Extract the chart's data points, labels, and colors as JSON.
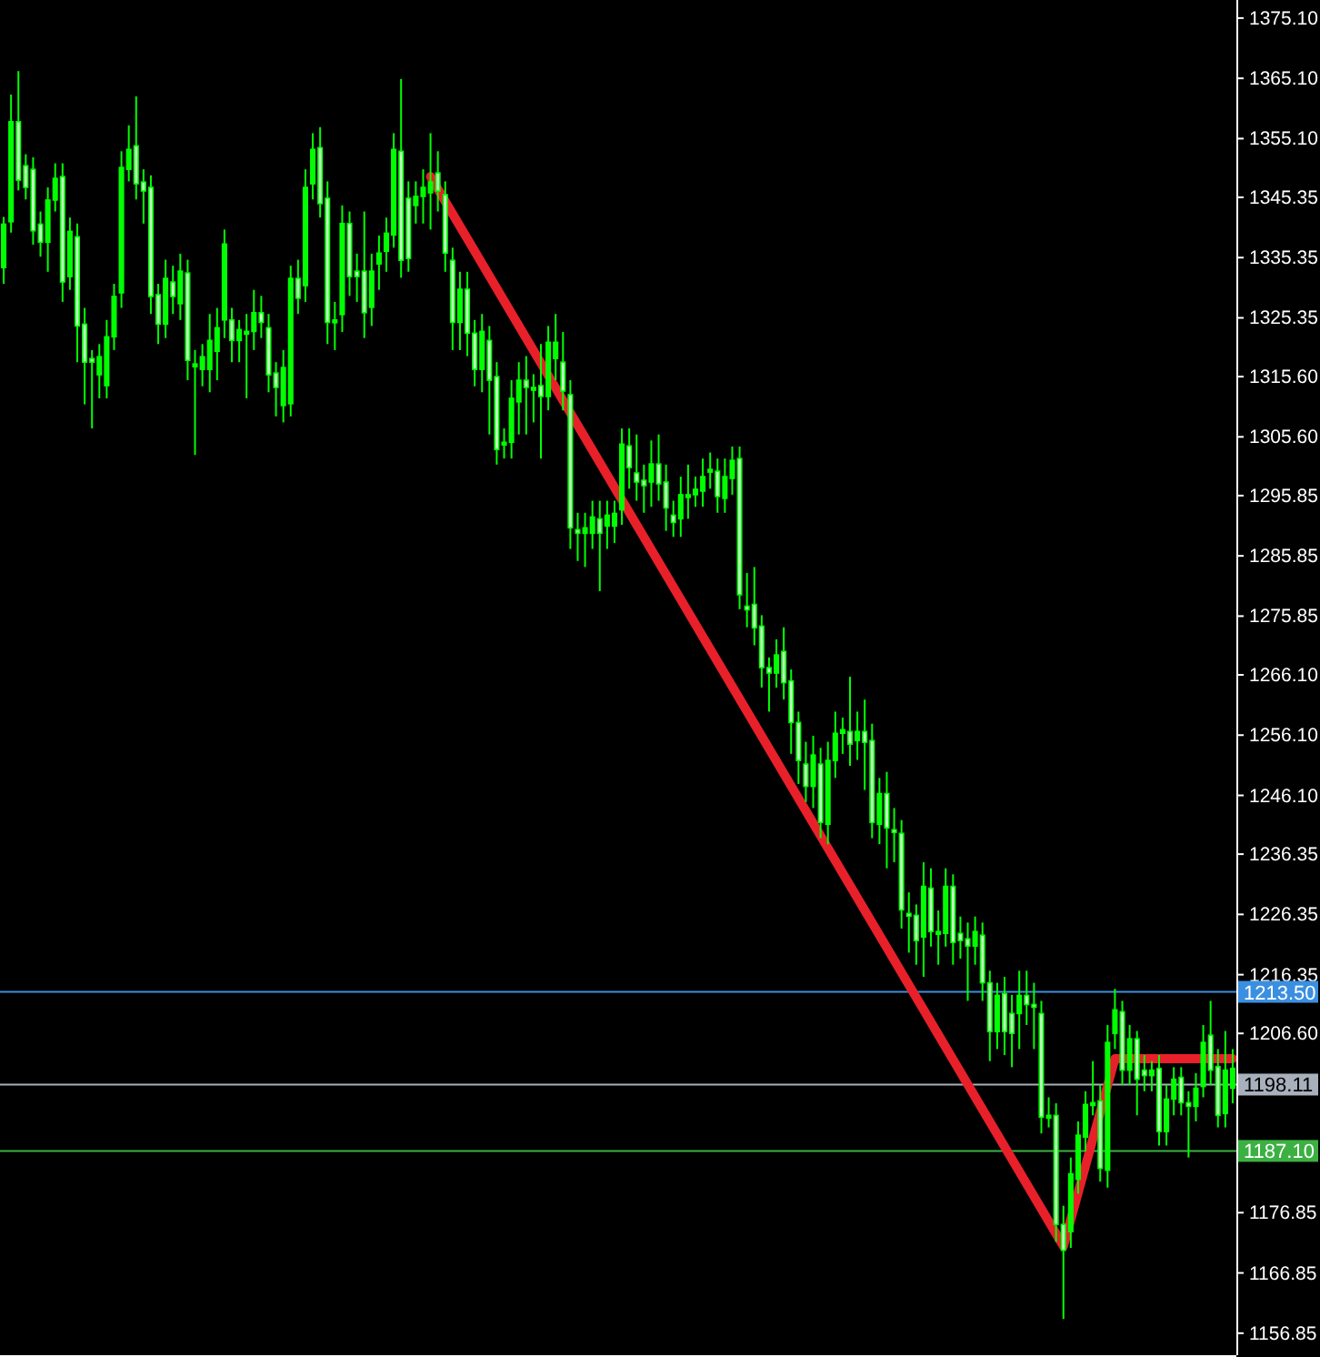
{
  "chart_data": {
    "type": "candlestick",
    "color": "#00ff00",
    "tick_labels": "y",
    "grid": false,
    "ylim": [
      1153.2,
      1378.1
    ],
    "yticks": [
      {
        "value": 1375.1,
        "label": "1375.10"
      },
      {
        "value": 1365.1,
        "label": "1365.10"
      },
      {
        "value": 1355.1,
        "label": "1355.10"
      },
      {
        "value": 1345.35,
        "label": "1345.35"
      },
      {
        "value": 1335.35,
        "label": "1335.35"
      },
      {
        "value": 1325.35,
        "label": "1325.35"
      },
      {
        "value": 1315.6,
        "label": "1315.60"
      },
      {
        "value": 1305.6,
        "label": "1305.60"
      },
      {
        "value": 1295.85,
        "label": "1295.85"
      },
      {
        "value": 1285.85,
        "label": "1285.85"
      },
      {
        "value": 1275.85,
        "label": "1275.85"
      },
      {
        "value": 1266.1,
        "label": "1266.10"
      },
      {
        "value": 1256.1,
        "label": "1256.10"
      },
      {
        "value": 1246.1,
        "label": "1246.10"
      },
      {
        "value": 1236.35,
        "label": "1236.35"
      },
      {
        "value": 1226.35,
        "label": "1226.35"
      },
      {
        "value": 1216.35,
        "label": "1216.35"
      },
      {
        "value": 1206.6,
        "label": "1206.60"
      },
      {
        "value": 1176.85,
        "label": "1176.85"
      },
      {
        "value": 1166.85,
        "label": "1166.85"
      },
      {
        "value": 1156.85,
        "label": "1156.85"
      }
    ],
    "categories": [
      null,
      null,
      null,
      null,
      null,
      null,
      null,
      null,
      null,
      null,
      null,
      null,
      null,
      null,
      null,
      null,
      null,
      null,
      null,
      null,
      null,
      null,
      null,
      null,
      null,
      null,
      null,
      null,
      null,
      null,
      null,
      null,
      null,
      null,
      null,
      null,
      null,
      null,
      null,
      null,
      null,
      null,
      null,
      null,
      null,
      null,
      null,
      null,
      null,
      null,
      null,
      null,
      null,
      null,
      null,
      null,
      null,
      null,
      null,
      null,
      null,
      null,
      null,
      null,
      null,
      null,
      null,
      null,
      null,
      null,
      null,
      null,
      null,
      null,
      null,
      null,
      null,
      null,
      null,
      null,
      null,
      null,
      null,
      null,
      null,
      null,
      null,
      null,
      null,
      null,
      null,
      null,
      null,
      null,
      null,
      null,
      null,
      null,
      null,
      null,
      null,
      null,
      null,
      null,
      null,
      null,
      null,
      null,
      null,
      null,
      null,
      null,
      null,
      null,
      null,
      null,
      null,
      null,
      null,
      null,
      null,
      null,
      null,
      null,
      null,
      null,
      null,
      null,
      null,
      null,
      null,
      null,
      null,
      null,
      null,
      null,
      null,
      null,
      null,
      null,
      null,
      null,
      null,
      null,
      null,
      null,
      null,
      null,
      null,
      null,
      null,
      null,
      null,
      null,
      null,
      null,
      null,
      null,
      null,
      null,
      null,
      null,
      null,
      null,
      null,
      null,
      null,
      null
    ],
    "ohlc": [
      [
        1333.7,
        1342.1,
        1331.0,
        1340.9
      ],
      [
        1341.3,
        1362.4,
        1339.5,
        1357.9
      ],
      [
        1357.9,
        1366.3,
        1346.5,
        1348.2
      ],
      [
        1350.6,
        1352.5,
        1345.0,
        1347.0
      ],
      [
        1350.0,
        1352.0,
        1337.5,
        1339.8
      ],
      [
        1340.9,
        1343.0,
        1335.5,
        1337.9
      ],
      [
        1337.9,
        1347.0,
        1333.0,
        1344.9
      ],
      [
        1344.9,
        1351.0,
        1343.0,
        1348.5
      ],
      [
        1348.8,
        1351.0,
        1328.0,
        1331.3
      ],
      [
        1332.2,
        1342.0,
        1330.0,
        1339.7
      ],
      [
        1338.8,
        1341.0,
        1318.0,
        1324.0
      ],
      [
        1324.3,
        1327.0,
        1311.0,
        1318.0
      ],
      [
        1318.6,
        1320.0,
        1307.0,
        1318.0
      ],
      [
        1315.9,
        1321.0,
        1312.0,
        1318.9
      ],
      [
        1314.1,
        1325.0,
        1312.0,
        1322.2
      ],
      [
        1322.2,
        1331.0,
        1320.0,
        1328.9
      ],
      [
        1329.5,
        1353.0,
        1327.0,
        1350.3
      ],
      [
        1350.0,
        1357.3,
        1348.0,
        1353.3
      ],
      [
        1353.9,
        1362.1,
        1345.0,
        1347.6
      ],
      [
        1347.9,
        1350.0,
        1341.0,
        1346.4
      ],
      [
        1347.0,
        1349.0,
        1326.0,
        1328.9
      ],
      [
        1329.2,
        1331.0,
        1321.0,
        1324.3
      ],
      [
        1324.3,
        1335.0,
        1322.0,
        1331.9
      ],
      [
        1331.3,
        1334.0,
        1326.0,
        1328.9
      ],
      [
        1327.7,
        1336.0,
        1325.0,
        1333.1
      ],
      [
        1332.8,
        1335.0,
        1315.0,
        1318.3
      ],
      [
        1317.7,
        1320.0,
        1302.6,
        1317.7
      ],
      [
        1316.8,
        1321.0,
        1314.0,
        1318.9
      ],
      [
        1316.8,
        1326.0,
        1313.0,
        1321.6
      ],
      [
        1319.8,
        1327.0,
        1315.0,
        1323.7
      ],
      [
        1325.0,
        1340.0,
        1322.0,
        1337.6
      ],
      [
        1325.0,
        1327.0,
        1318.0,
        1321.6
      ],
      [
        1321.6,
        1325.0,
        1318.0,
        1323.4
      ],
      [
        1323.1,
        1326.0,
        1312.0,
        1323.1
      ],
      [
        1323.1,
        1330.0,
        1320.0,
        1326.2
      ],
      [
        1326.2,
        1329.0,
        1322.0,
        1324.6
      ],
      [
        1323.7,
        1326.0,
        1313.0,
        1315.9
      ],
      [
        1316.2,
        1318.0,
        1309.0,
        1313.8
      ],
      [
        1310.8,
        1320.0,
        1308.0,
        1317.1
      ],
      [
        1311.1,
        1334.0,
        1309.0,
        1331.9
      ],
      [
        1331.9,
        1335.0,
        1326.0,
        1328.6
      ],
      [
        1330.7,
        1350.0,
        1328.0,
        1347.0
      ],
      [
        1347.6,
        1356.0,
        1345.0,
        1353.3
      ],
      [
        1353.6,
        1357.0,
        1342.0,
        1344.3
      ],
      [
        1345.2,
        1348.0,
        1321.0,
        1324.6
      ],
      [
        1325.0,
        1328.0,
        1320.0,
        1325.0
      ],
      [
        1325.9,
        1344.0,
        1323.0,
        1341.0
      ],
      [
        1341.0,
        1343.0,
        1329.0,
        1332.2
      ],
      [
        1333.1,
        1336.0,
        1328.0,
        1332.2
      ],
      [
        1333.1,
        1343.0,
        1322.0,
        1326.2
      ],
      [
        1327.1,
        1336.0,
        1324.0,
        1333.1
      ],
      [
        1334.3,
        1339.0,
        1330.0,
        1336.1
      ],
      [
        1336.4,
        1342.0,
        1333.0,
        1339.4
      ],
      [
        1339.1,
        1356.0,
        1337.0,
        1353.3
      ],
      [
        1353.0,
        1365.0,
        1332.0,
        1334.9
      ],
      [
        1345.2,
        1348.0,
        1333.0,
        1335.2
      ],
      [
        1344.0,
        1348.0,
        1341.0,
        1345.5
      ],
      [
        1345.5,
        1350.0,
        1341.0,
        1347.0
      ],
      [
        1346.1,
        1356.0,
        1340.0,
        1347.9
      ],
      [
        1349.4,
        1353.0,
        1343.0,
        1346.4
      ],
      [
        1345.8,
        1348.0,
        1333.0,
        1336.1
      ],
      [
        1334.9,
        1337.0,
        1320.0,
        1324.6
      ],
      [
        1324.6,
        1333.0,
        1320.0,
        1330.1
      ],
      [
        1330.1,
        1333.0,
        1319.0,
        1322.8
      ],
      [
        1322.8,
        1325.0,
        1314.0,
        1316.8
      ],
      [
        1316.8,
        1326.0,
        1313.0,
        1323.1
      ],
      [
        1321.6,
        1324.0,
        1306.0,
        1315.0
      ],
      [
        1315.6,
        1318.0,
        1301.0,
        1303.5
      ],
      [
        1304.7,
        1307.0,
        1302.0,
        1304.7
      ],
      [
        1304.7,
        1315.0,
        1302.0,
        1312.0
      ],
      [
        1311.4,
        1318.0,
        1306.0,
        1315.0
      ],
      [
        1315.0,
        1319.0,
        1306.0,
        1313.8
      ],
      [
        1313.8,
        1316.0,
        1308.0,
        1313.8
      ],
      [
        1314.1,
        1321.0,
        1302.0,
        1312.3
      ],
      [
        1312.3,
        1324.0,
        1310.0,
        1321.3
      ],
      [
        1318.6,
        1326.0,
        1315.0,
        1321.3
      ],
      [
        1318.0,
        1323.0,
        1310.0,
        1313.2
      ],
      [
        1312.6,
        1315.0,
        1287.0,
        1290.5
      ],
      [
        1290.2,
        1293.0,
        1285.0,
        1289.6
      ],
      [
        1289.6,
        1293.0,
        1284.0,
        1290.5
      ],
      [
        1289.6,
        1295.0,
        1287.0,
        1292.3
      ],
      [
        1292.0,
        1295.0,
        1280.0,
        1289.6
      ],
      [
        1290.8,
        1295.0,
        1287.0,
        1292.6
      ],
      [
        1290.8,
        1295.0,
        1288.0,
        1292.9
      ],
      [
        1293.5,
        1307.0,
        1291.0,
        1304.4
      ],
      [
        1304.1,
        1307.0,
        1297.0,
        1300.5
      ],
      [
        1299.6,
        1306.0,
        1295.0,
        1298.1
      ],
      [
        1298.4,
        1301.0,
        1293.0,
        1297.5
      ],
      [
        1298.1,
        1305.0,
        1294.0,
        1301.1
      ],
      [
        1301.1,
        1306.0,
        1295.0,
        1297.8
      ],
      [
        1298.1,
        1301.0,
        1290.0,
        1293.8
      ],
      [
        1292.6,
        1295.0,
        1289.0,
        1291.4
      ],
      [
        1292.0,
        1299.0,
        1289.0,
        1296.0
      ],
      [
        1296.0,
        1301.0,
        1292.0,
        1296.0
      ],
      [
        1296.0,
        1299.0,
        1294.0,
        1296.9
      ],
      [
        1296.6,
        1302.0,
        1294.0,
        1299.0
      ],
      [
        1300.2,
        1303.0,
        1297.0,
        1300.2
      ],
      [
        1299.9,
        1302.0,
        1293.0,
        1295.7
      ],
      [
        1295.4,
        1302.0,
        1293.0,
        1299.0
      ],
      [
        1298.7,
        1304.0,
        1296.0,
        1301.7
      ],
      [
        1302.0,
        1304.0,
        1277.0,
        1279.4
      ],
      [
        1277.5,
        1283.0,
        1274.0,
        1276.9
      ],
      [
        1277.8,
        1284.0,
        1271.0,
        1273.9
      ],
      [
        1274.2,
        1276.0,
        1264.0,
        1267.3
      ],
      [
        1267.3,
        1269.0,
        1260.0,
        1266.4
      ],
      [
        1266.4,
        1272.0,
        1264.0,
        1269.4
      ],
      [
        1270.0,
        1274.0,
        1262.0,
        1264.8
      ],
      [
        1265.1,
        1267.0,
        1253.0,
        1258.2
      ],
      [
        1258.2,
        1260.0,
        1248.0,
        1251.9
      ],
      [
        1251.3,
        1255.0,
        1245.0,
        1247.6
      ],
      [
        1247.6,
        1256.0,
        1244.0,
        1252.8
      ],
      [
        1251.3,
        1254.0,
        1239.0,
        1241.6
      ],
      [
        1241.3,
        1255.0,
        1238.0,
        1251.9
      ],
      [
        1251.9,
        1260.0,
        1249.0,
        1256.4
      ],
      [
        1256.4,
        1259.0,
        1253.0,
        1257.0
      ],
      [
        1256.7,
        1265.8,
        1251.0,
        1254.6
      ],
      [
        1255.2,
        1260.0,
        1252.0,
        1256.7
      ],
      [
        1256.7,
        1262.0,
        1247.0,
        1254.9
      ],
      [
        1255.2,
        1258.0,
        1239.0,
        1241.6
      ],
      [
        1241.3,
        1249.0,
        1238.0,
        1246.4
      ],
      [
        1246.4,
        1250.0,
        1234.0,
        1240.7
      ],
      [
        1240.4,
        1244.0,
        1235.0,
        1240.1
      ],
      [
        1239.8,
        1242.0,
        1224.0,
        1227.1
      ],
      [
        1226.5,
        1230.0,
        1220.0,
        1226.2
      ],
      [
        1226.2,
        1228.0,
        1218.0,
        1222.0
      ],
      [
        1222.6,
        1235.0,
        1216.0,
        1231.0
      ],
      [
        1230.7,
        1234.0,
        1221.0,
        1223.5
      ],
      [
        1223.5,
        1227.0,
        1218.0,
        1223.5
      ],
      [
        1223.2,
        1234.0,
        1221.0,
        1231.0
      ],
      [
        1231.0,
        1233.0,
        1218.0,
        1221.7
      ],
      [
        1223.2,
        1226.0,
        1219.0,
        1222.0
      ],
      [
        1222.3,
        1225.0,
        1212.0,
        1221.1
      ],
      [
        1221.1,
        1226.0,
        1218.0,
        1223.5
      ],
      [
        1222.9,
        1225.0,
        1212.0,
        1215.0
      ],
      [
        1215.0,
        1217.0,
        1202.0,
        1206.9
      ],
      [
        1206.9,
        1215.0,
        1204.0,
        1212.9
      ],
      [
        1213.2,
        1216.0,
        1203.0,
        1206.9
      ],
      [
        1209.9,
        1213.0,
        1201.0,
        1206.6
      ],
      [
        1209.9,
        1217.0,
        1204.0,
        1212.9
      ],
      [
        1212.9,
        1217.0,
        1208.0,
        1211.4
      ],
      [
        1211.4,
        1215.0,
        1204.0,
        1211.1
      ],
      [
        1209.9,
        1212.0,
        1190.0,
        1192.7
      ],
      [
        1193.0,
        1196.0,
        1191.0,
        1193.0
      ],
      [
        1193.0,
        1195.0,
        1172.0,
        1174.9
      ],
      [
        1174.9,
        1178.0,
        1159.2,
        1170.6
      ],
      [
        1173.7,
        1186.0,
        1171.0,
        1183.3
      ],
      [
        1182.4,
        1192.0,
        1180.0,
        1189.7
      ],
      [
        1189.4,
        1197.0,
        1187.0,
        1194.8
      ],
      [
        1195.1,
        1202.0,
        1193.0,
        1195.1
      ],
      [
        1195.4,
        1198.0,
        1182.0,
        1184.2
      ],
      [
        1183.9,
        1208.0,
        1181.0,
        1205.1
      ],
      [
        1206.6,
        1214.0,
        1204.0,
        1210.5
      ],
      [
        1210.2,
        1212.0,
        1198.0,
        1200.5
      ],
      [
        1200.5,
        1208.0,
        1198.0,
        1205.7
      ],
      [
        1205.7,
        1207.0,
        1193.0,
        1199.0
      ],
      [
        1200.5,
        1203.0,
        1197.0,
        1199.6
      ],
      [
        1199.6,
        1202.0,
        1197.0,
        1200.5
      ],
      [
        1200.8,
        1203.0,
        1188.0,
        1190.3
      ],
      [
        1190.3,
        1198.0,
        1188.0,
        1195.7
      ],
      [
        1195.7,
        1201.0,
        1193.0,
        1199.0
      ],
      [
        1199.3,
        1201.0,
        1193.0,
        1195.1
      ],
      [
        1195.1,
        1197.0,
        1186.0,
        1194.5
      ],
      [
        1194.5,
        1200.0,
        1192.0,
        1197.5
      ],
      [
        1197.8,
        1208.0,
        1196.0,
        1205.1
      ],
      [
        1206.3,
        1212.0,
        1198.0,
        1200.5
      ],
      [
        1201.1,
        1204.0,
        1191.0,
        1193.0
      ],
      [
        1193.3,
        1207.0,
        1191.0,
        1200.5
      ],
      [
        1197.5,
        1204.0,
        1195.0,
        1200.8
      ]
    ],
    "series": [
      {
        "type": "line",
        "color": "#e8202a",
        "values": [
          null,
          null,
          null,
          null,
          null,
          null,
          null,
          null,
          null,
          null,
          null,
          null,
          null,
          null,
          null,
          null,
          null,
          null,
          null,
          null,
          null,
          null,
          null,
          null,
          null,
          null,
          null,
          null,
          null,
          null,
          null,
          null,
          null,
          null,
          null,
          null,
          null,
          null,
          null,
          null,
          null,
          null,
          null,
          null,
          null,
          null,
          null,
          null,
          null,
          null,
          null,
          null,
          null,
          null,
          null,
          null,
          null,
          null,
          1348.8,
          null,
          null,
          null,
          null,
          null,
          null,
          null,
          null,
          null,
          null,
          null,
          null,
          null,
          null,
          null,
          null,
          null,
          null,
          null,
          null,
          null,
          null,
          null,
          null,
          null,
          null,
          null,
          null,
          null,
          null,
          null,
          null,
          null,
          null,
          null,
          null,
          null,
          null,
          null,
          null,
          null,
          null,
          null,
          null,
          null,
          null,
          null,
          null,
          null,
          null,
          null,
          null,
          null,
          null,
          null,
          null,
          null,
          null,
          null,
          null,
          null,
          null,
          null,
          null,
          null,
          null,
          null,
          null,
          null,
          null,
          null,
          null,
          null,
          null,
          null,
          null,
          null,
          null,
          null,
          null,
          null,
          null,
          null,
          null,
          null,
          1171.3,
          null,
          null,
          null,
          null,
          null,
          null,
          1202.4,
          null,
          null,
          null,
          null,
          null,
          null,
          null,
          null,
          null,
          null,
          null,
          null,
          null,
          null,
          null,
          1202.4
        ]
      }
    ],
    "ref_lines": [
      {
        "axis": "y",
        "value": 1213.5,
        "label": "1213.50",
        "color": "#3b8fe0"
      },
      {
        "axis": "y",
        "value": 1198.11,
        "label": "1198.11",
        "color": "#a8b0bc"
      },
      {
        "axis": "y",
        "value": 1187.1,
        "label": "1187.10",
        "color": "#3cb043"
      }
    ]
  }
}
